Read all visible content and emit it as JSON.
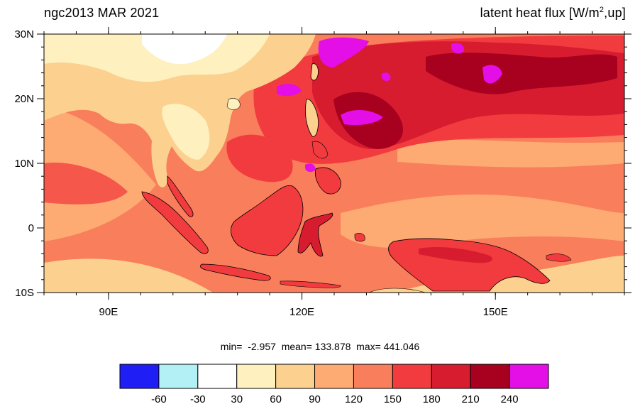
{
  "title": {
    "left": "ngc2013 MAR 2021",
    "right_main": "latent heat flux [W/m",
    "right_sup": "2",
    "right_end": ",up]"
  },
  "map": {
    "region": "Maritime Continent / Western Pacific",
    "lon_range": [
      80,
      170
    ],
    "lat_range": [
      -10,
      30
    ],
    "x_ticks": [
      {
        "lon": 90,
        "label": "90E"
      },
      {
        "lon": 120,
        "label": "120E"
      },
      {
        "lon": 150,
        "label": "150E"
      }
    ],
    "y_ticks": [
      {
        "lat": 30,
        "label": "30N"
      },
      {
        "lat": 20,
        "label": "20N"
      },
      {
        "lat": 10,
        "label": "10N"
      },
      {
        "lat": 0,
        "label": "0"
      },
      {
        "lat": -10,
        "label": "10S"
      }
    ]
  },
  "stats": {
    "text": "min=  -2.957  mean= 133.878  max= 441.046"
  },
  "colorbar": {
    "colors": [
      "#1f1ff5",
      "#b3f0f5",
      "#ffffff",
      "#fff0bf",
      "#fcd18f",
      "#fdaa73",
      "#f97e5b",
      "#f23b3e",
      "#d81c2f",
      "#a8001f",
      "#e40ee6"
    ],
    "labels": [
      "-60",
      "-30",
      "30",
      "60",
      "90",
      "120",
      "150",
      "180",
      "210",
      "240"
    ]
  }
}
